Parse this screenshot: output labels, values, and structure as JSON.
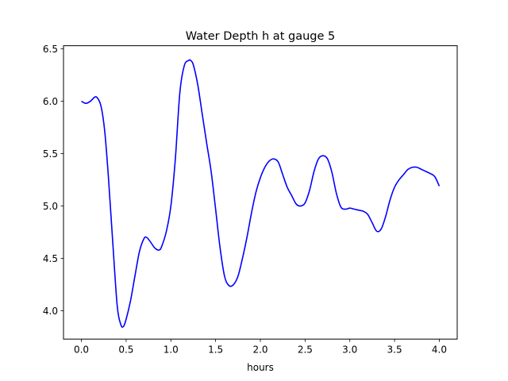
{
  "chart_data": {
    "type": "line",
    "title": "Water Depth h at gauge 5",
    "xlabel": "hours",
    "ylabel": "",
    "xlim": [
      -0.2,
      4.2
    ],
    "ylim": [
      3.73,
      6.53
    ],
    "xticks": [
      0.0,
      0.5,
      1.0,
      1.5,
      2.0,
      2.5,
      3.0,
      3.5,
      4.0
    ],
    "xtick_labels": [
      "0.0",
      "0.5",
      "1.0",
      "1.5",
      "2.0",
      "2.5",
      "3.0",
      "3.5",
      "4.0"
    ],
    "yticks": [
      4.0,
      4.5,
      5.0,
      5.5,
      6.0,
      6.5
    ],
    "ytick_labels": [
      "4.0",
      "4.5",
      "5.0",
      "5.5",
      "6.0",
      "6.5"
    ],
    "grid": false,
    "legend": "none",
    "series": [
      {
        "color": "#0000ff",
        "x": [
          0.0,
          0.05,
          0.1,
          0.15,
          0.18,
          0.22,
          0.26,
          0.3,
          0.35,
          0.4,
          0.44,
          0.47,
          0.5,
          0.55,
          0.6,
          0.65,
          0.7,
          0.73,
          0.77,
          0.82,
          0.87,
          0.9,
          0.95,
          1.0,
          1.05,
          1.1,
          1.15,
          1.2,
          1.22,
          1.25,
          1.3,
          1.35,
          1.4,
          1.45,
          1.5,
          1.55,
          1.6,
          1.65,
          1.7,
          1.75,
          1.8,
          1.85,
          1.9,
          1.95,
          2.0,
          2.05,
          2.1,
          2.15,
          2.2,
          2.25,
          2.3,
          2.35,
          2.4,
          2.45,
          2.5,
          2.55,
          2.6,
          2.65,
          2.7,
          2.75,
          2.8,
          2.85,
          2.9,
          2.95,
          3.0,
          3.05,
          3.1,
          3.15,
          3.2,
          3.25,
          3.3,
          3.35,
          3.4,
          3.45,
          3.5,
          3.55,
          3.6,
          3.65,
          3.7,
          3.75,
          3.8,
          3.85,
          3.9,
          3.95,
          4.0
        ],
        "y": [
          6.0,
          5.98,
          6.0,
          6.04,
          6.03,
          5.95,
          5.72,
          5.3,
          4.66,
          4.05,
          3.87,
          3.85,
          3.92,
          4.1,
          4.34,
          4.57,
          4.69,
          4.7,
          4.66,
          4.6,
          4.58,
          4.62,
          4.76,
          5.0,
          5.45,
          6.08,
          6.34,
          6.39,
          6.39,
          6.35,
          6.16,
          5.88,
          5.6,
          5.33,
          4.97,
          4.6,
          4.33,
          4.24,
          4.25,
          4.33,
          4.5,
          4.7,
          4.93,
          5.13,
          5.27,
          5.37,
          5.43,
          5.45,
          5.42,
          5.3,
          5.18,
          5.1,
          5.02,
          5.0,
          5.03,
          5.15,
          5.33,
          5.45,
          5.48,
          5.45,
          5.32,
          5.12,
          4.99,
          4.97,
          4.98,
          4.97,
          4.96,
          4.95,
          4.92,
          4.84,
          4.76,
          4.78,
          4.9,
          5.06,
          5.18,
          5.25,
          5.3,
          5.35,
          5.37,
          5.37,
          5.35,
          5.33,
          5.31,
          5.28,
          5.19
        ]
      }
    ]
  }
}
